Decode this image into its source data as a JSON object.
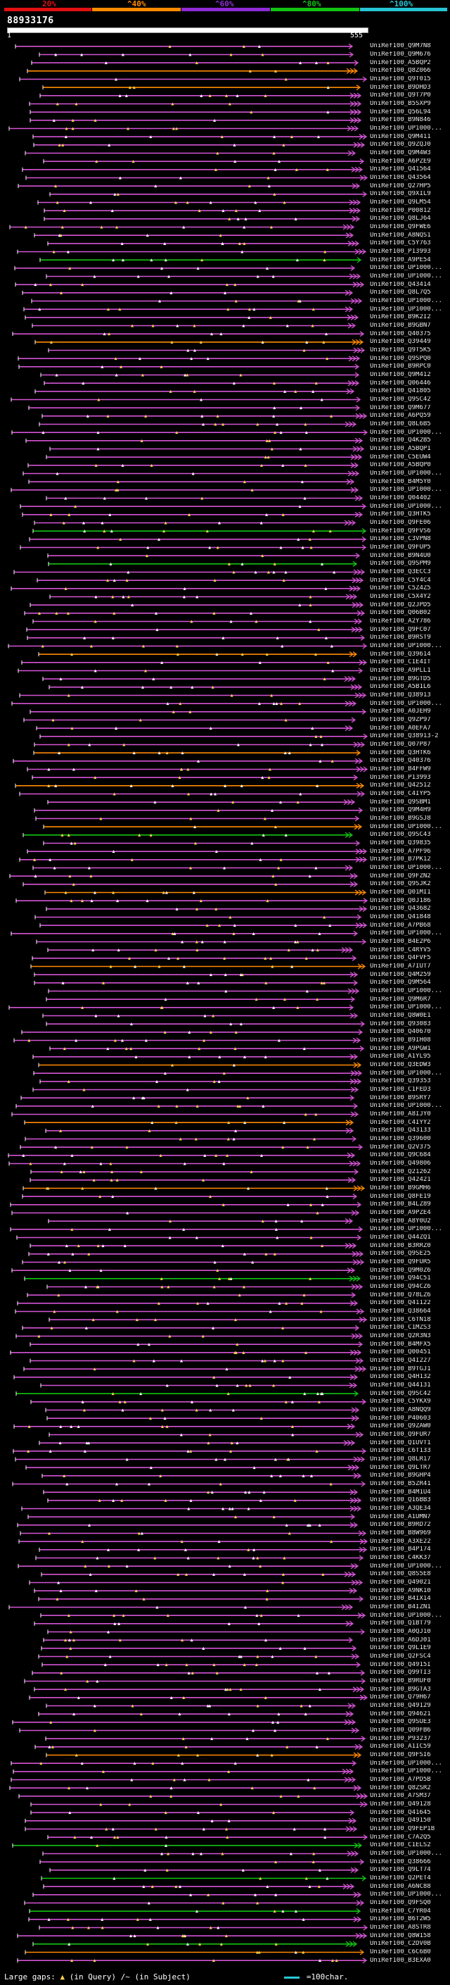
{
  "legend": {
    "labels": [
      "20%",
      "^40%",
      "^60%",
      "^80%",
      "^100%"
    ],
    "colors": [
      "#e01010",
      "#ff8a00",
      "#8e2bd6",
      "#13c313",
      "#27c4d4"
    ]
  },
  "query": {
    "id": "88933176",
    "start": "1",
    "end": "555"
  },
  "hits": [
    "UniRef100_Q9M7N8",
    "UniRef100_Q9M676",
    "UniRef100_A5BQP2",
    "UniRef100_Q8Z066",
    "UniRef100_Q9T015",
    "UniRef100_B9DHD3",
    "UniRef100_Q9T7P0",
    "UniRef100_B5SXP9",
    "UniRef100_Q56L94",
    "UniRef100_B9N846",
    "UniRef100_UP1000...",
    "UniRef100_Q9M411",
    "UniRef100_Q9ZQJ0",
    "UniRef100_Q9M4W3",
    "UniRef100_A6PZE9",
    "UniRef100_Q41564",
    "UniRef100_Q43564",
    "UniRef100_Q27HP5",
    "UniRef100_Q9XIL9",
    "UniRef100_Q9LM54",
    "UniRef100_P00812",
    "UniRef100_Q8LJ64",
    "UniRef100_Q9FWE6",
    "UniRef100_A8NQS1",
    "UniRef100_C5Y763",
    "UniRef100_P13993",
    "UniRef100_A9PE54",
    "UniRef100_UP1000...",
    "UniRef100_UP1000...",
    "UniRef100_Q43414",
    "UniRef100_Q8L7Q5",
    "UniRef100_UP1000...",
    "UniRef100_UP1000...",
    "UniRef100_B9K2I2",
    "UniRef100_B9GBN7",
    "UniRef100_Q40375",
    "UniRef100_Q39449",
    "UniRef100_Q9T5K5",
    "UniRef100_Q9SPQ0",
    "UniRef100_B9RPC0",
    "UniRef100_Q9M412",
    "UniRef100_Q06446",
    "UniRef100_Q41805",
    "UniRef100_Q9SC42",
    "UniRef100_Q9M677",
    "UniRef100_A6PQ59",
    "UniRef100_Q8L6B5",
    "UniRef100_UP1000...",
    "UniRef100_Q4K2B5",
    "UniRef100_A5BQP1",
    "UniRef100_C5EUW4",
    "UniRef100_A5BQP0",
    "UniRef100_UP1000...",
    "UniRef100_B4M5Y0",
    "UniRef100_UP1000...",
    "UniRef100_Q04402",
    "UniRef100_UP1000...",
    "UniRef100_Q3HTK5",
    "UniRef100_Q9FE06",
    "UniRef100_Q9FVS6",
    "UniRef100_C3VPN8",
    "UniRef100_Q9FUP5",
    "UniRef100_B9N4U0",
    "UniRef100_Q9SPM9",
    "UniRef100_Q3ECC3",
    "UniRef100_C5Y4C4",
    "UniRef100_C5Z4Z5",
    "UniRef100_C5X4Y2",
    "UniRef100_Q2JPD5",
    "UniRef100_Q06B02",
    "UniRef100_A2Y786",
    "UniRef100_Q9FC07",
    "UniRef100_B9RST9",
    "UniRef100_UP1000...",
    "UniRef100_Q39614",
    "UniRef100_C1E4IT",
    "UniRef100_A9PLL1",
    "UniRef100_B9GTD5",
    "UniRef100_A5B1L6",
    "UniRef100_Q38913",
    "UniRef100_UP1000...",
    "UniRef100_A0JEH9",
    "UniRef100_Q9ZP97",
    "UniRef100_A0EFA7",
    "UniRef100_Q38913-2",
    "UniRef100_Q07P87",
    "UniRef100_Q3HTK6",
    "UniRef100_Q40376",
    "UniRef100_B4FFW9",
    "UniRef100_P13993",
    "UniRef100_Q42512",
    "UniRef100_C4IYP5",
    "UniRef100_Q9SBM1",
    "UniRef100_Q9M4H9",
    "UniRef100_B9GSJ8",
    "UniRef100_UP1000...",
    "UniRef100_Q9SC43",
    "UniRef100_Q39835",
    "UniRef100_A7PF96",
    "UniRef100_B7PK12",
    "UniRef100_UP1000...",
    "UniRef100_Q9FZN2",
    "UniRef100_Q9SJK2",
    "UniRef100_Q01MI1",
    "UniRef100_Q0J186",
    "UniRef100_Q43682",
    "UniRef100_Q41848",
    "UniRef100_A7PB68",
    "UniRef100_UP1000...",
    "UniRef100_B4E2P6",
    "UniRef100_C4RYV5",
    "UniRef100_Q4FVF5",
    "UniRef100_A7IUT7",
    "UniRef100_Q4M259",
    "UniRef100_Q9M564",
    "UniRef100_UP1000...",
    "UniRef100_Q9M6R7",
    "UniRef100_UP1000...",
    "UniRef100_Q8W0E1",
    "UniRef100_Q93083",
    "UniRef100_Q40670",
    "UniRef100_B9IH08",
    "UniRef100_A9PGW1",
    "UniRef100_A1YL95",
    "UniRef100_Q3EDW3",
    "UniRef100_UP1000...",
    "UniRef100_Q39353",
    "UniRef100_C1FED3",
    "UniRef100_B9SRY7",
    "UniRef100_UP1000...",
    "UniRef100_A8IJY0",
    "UniRef100_C4IYY2",
    "UniRef100_Q43133",
    "UniRef100_Q39600",
    "UniRef100_Q2V375",
    "UniRef100_Q9C684",
    "UniRef100_Q49806",
    "UniRef100_Q21262",
    "UniRef100_Q42421",
    "UniRef100_B9GMH6",
    "UniRef100_Q8FE19",
    "UniRef100_B4LZ89",
    "UniRef100_A9PZE4",
    "UniRef100_A8Y0U2",
    "UniRef100_UP1000...",
    "UniRef100_Q44ZQ1",
    "UniRef100_B3RRZ0",
    "UniRef100_Q9SE25",
    "UniRef100_Q9FUR5",
    "UniRef100_Q9M0Z6",
    "UniRef100_Q94C51",
    "UniRef100_Q94CZ6",
    "UniRef100_Q78LZ6",
    "UniRef100_Q41122",
    "UniRef100_Q38664",
    "UniRef100_C6TN18",
    "UniRef100_C1MZS3",
    "UniRef100_Q2R3N3",
    "UniRef100_B4MFX5",
    "UniRef100_Q00451",
    "UniRef100_Q4I227",
    "UniRef100_B9TGJ1",
    "UniRef100_Q4H132",
    "UniRef100_Q44131",
    "UniRef100_Q9SC42",
    "UniRef100_C5YKX9",
    "UniRef100_A8NQQ9",
    "UniRef100_P40603",
    "UniRef100_Q9ZAW0",
    "UniRef100_Q9FUR7",
    "UniRef100_Q1UVT1",
    "UniRef100_C6T133",
    "UniRef100_Q8LR17",
    "UniRef100_Q9LTR7",
    "UniRef100_B9GHP4",
    "UniRef100_B5ZR41",
    "UniRef100_B4M1U4",
    "UniRef100_Q16BB3",
    "UniRef100_A3QE34",
    "UniRef100_A1UMN7",
    "UniRef100_B9RD72",
    "UniRef100_B8W969",
    "UniRef100_A3XE22",
    "UniRef100_B4P174",
    "UniRef100_C4KK37",
    "UniRef100_UP1000...",
    "UniRef100_Q8S5E8",
    "UniRef100_Q49021",
    "UniRef100_A9NK10",
    "UniRef100_B4IX14",
    "UniRef100_B4IZN1",
    "UniRef100_UP1000...",
    "UniRef100_Q1BT79",
    "UniRef100_A0QJ10",
    "UniRef100_A6DJ01",
    "UniRef100_Q9L1E9",
    "UniRef100_Q2FSC4",
    "UniRef100_Q4915I",
    "UniRef100_Q99TI3",
    "UniRef100_B9RUF0",
    "UniRef100_B9GTA3",
    "UniRef100_Q79H67",
    "UniRef100_Q49129",
    "UniRef100_Q94621",
    "UniRef100_Q9SUE3",
    "UniRef100_Q09FB6",
    "UniRef100_P93237",
    "UniRef100_A1IC59",
    "UniRef100_Q9FSI6",
    "UniRef100_UP1000...",
    "UniRef100_UP1000...",
    "UniRef100_A7PD5B",
    "UniRef100_Q8ZSR2",
    "UniRef100_A7SM37",
    "UniRef100_Q49128",
    "UniRef100_Q41645",
    "UniRef100_Q49150",
    "UniRef100_Q9FEP1B",
    "UniRef100_C7A2Q5",
    "UniRef100_C1ELS2",
    "UniRef100_UP1000...",
    "UniRef100_Q38666",
    "UniRef100_Q9LT74",
    "UniRef100_Q2PET4",
    "UniRef100_A6NC88",
    "UniRef100_UP1000...",
    "UniRef100_Q9FSQ0",
    "UniRef100_C7YR04",
    "UniRef100_B6T2W5",
    "UniRef100_A8STR8",
    "UniRef100_Q8W158",
    "UniRef100_C2DV0B",
    "UniRef100_C6C6B0",
    "UniRef100_B3EXA0"
  ],
  "footer": {
    "gaps_label": "Large gaps:",
    "gap_query": "(in Query)",
    "gap_subject": "/~ (in Subject)",
    "scale_label": "=100char."
  }
}
